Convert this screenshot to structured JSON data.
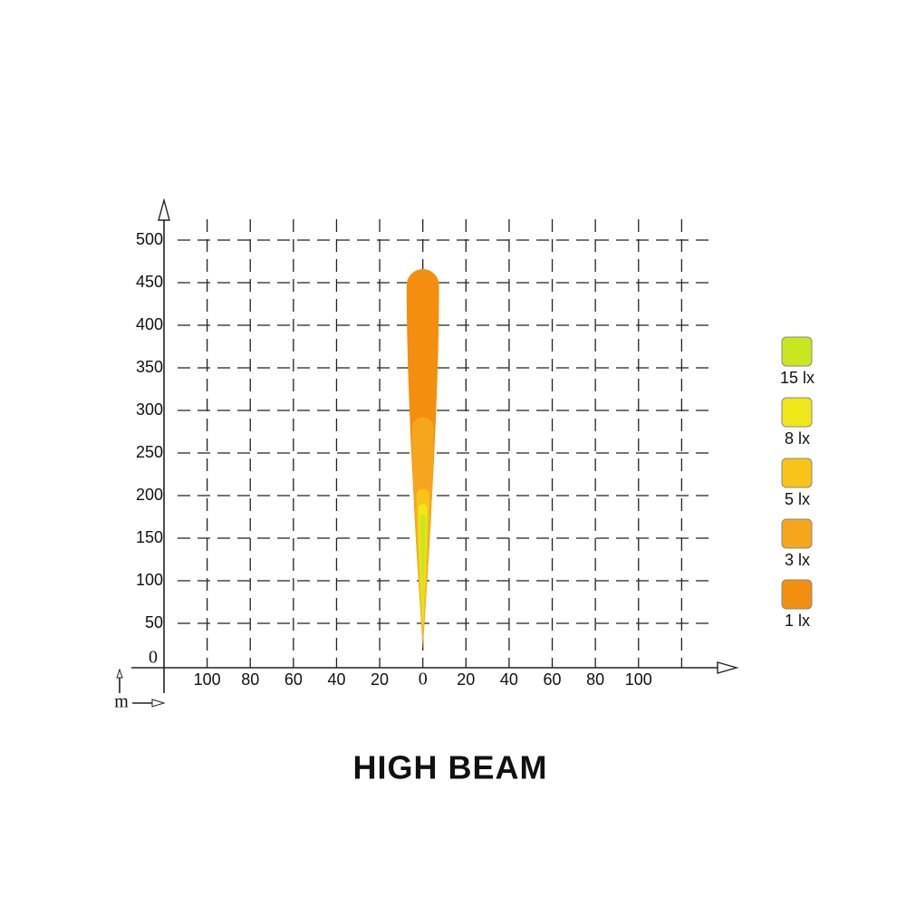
{
  "chart_data": {
    "type": "beam",
    "title": "HIGH BEAM",
    "unit": "m",
    "xlim": [
      -120,
      140
    ],
    "ylim": [
      0,
      500
    ],
    "xticks": [
      {
        "value": -100,
        "label": "100"
      },
      {
        "value": -80,
        "label": "80"
      },
      {
        "value": -60,
        "label": "60"
      },
      {
        "value": -40,
        "label": "40"
      },
      {
        "value": -20,
        "label": "20"
      },
      0,
      20,
      40,
      60,
      80,
      100
    ],
    "xgrid": [
      -100,
      -80,
      -60,
      -40,
      -20,
      0,
      20,
      40,
      60,
      80,
      100,
      120
    ],
    "yticks": [
      0,
      50,
      100,
      150,
      200,
      250,
      300,
      350,
      400,
      450,
      500
    ],
    "grid": true,
    "legend": "right",
    "series": [
      {
        "name": "15 lx",
        "color": "#c9e61f",
        "start": 60,
        "end": 178,
        "halfwidth": 1.2
      },
      {
        "name": "8 lx",
        "color": "#efe717",
        "start": 45,
        "end": 190,
        "halfwidth": 2
      },
      {
        "name": "5 lx",
        "color": "#f7c417",
        "start": 30,
        "end": 208,
        "halfwidth": 3
      },
      {
        "name": "3 lx",
        "color": "#f5a61c",
        "start": 25,
        "end": 292,
        "halfwidth": 5
      },
      {
        "name": "1 lx",
        "color": "#f48e0e",
        "start": 20,
        "end": 466,
        "halfwidth": 7.5
      }
    ]
  }
}
